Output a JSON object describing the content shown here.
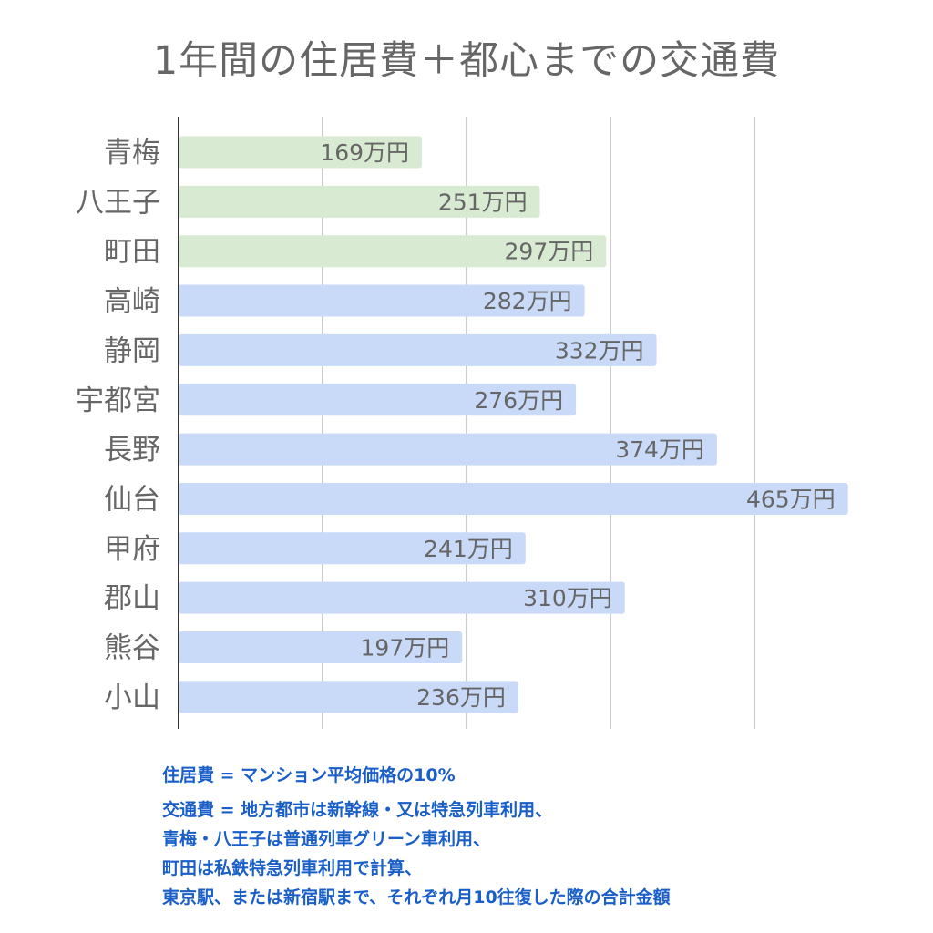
{
  "chart_data": {
    "type": "bar",
    "orientation": "horizontal",
    "title": "1年間の住居費＋都心までの交通費",
    "categories": [
      "青梅",
      "八王子",
      "町田",
      "高崎",
      "静岡",
      "宇都宮",
      "長野",
      "仙台",
      "甲府",
      "郡山",
      "熊谷",
      "小山"
    ],
    "values": [
      169,
      251,
      297,
      282,
      332,
      276,
      374,
      465,
      241,
      310,
      197,
      236
    ],
    "value_suffix": "万円",
    "bar_colors": [
      "#d9ead3",
      "#d9ead3",
      "#d9ead3",
      "#c9daf8",
      "#c9daf8",
      "#c9daf8",
      "#c9daf8",
      "#c9daf8",
      "#c9daf8",
      "#c9daf8",
      "#c9daf8",
      "#c9daf8"
    ],
    "xlim": [
      0,
      500
    ],
    "gridlines": [
      100,
      200,
      300,
      400
    ],
    "grid": true,
    "xlabel": "",
    "ylabel": ""
  },
  "notes": [
    "住居費 = マンション平均価格の10%",
    "交通費 = 地方都市は新幹線・又は特急列車利用、",
    "青梅・八王子は普通列車グリーン車利用、",
    "町田は私鉄特急列車利用で計算、",
    "東京駅、または新宿駅まで、それぞれ月10往復した際の合計金額"
  ],
  "colors": {
    "text": "#666666",
    "note": "#1a5fc8",
    "grid": "#cccccc",
    "axis": "#333333"
  }
}
